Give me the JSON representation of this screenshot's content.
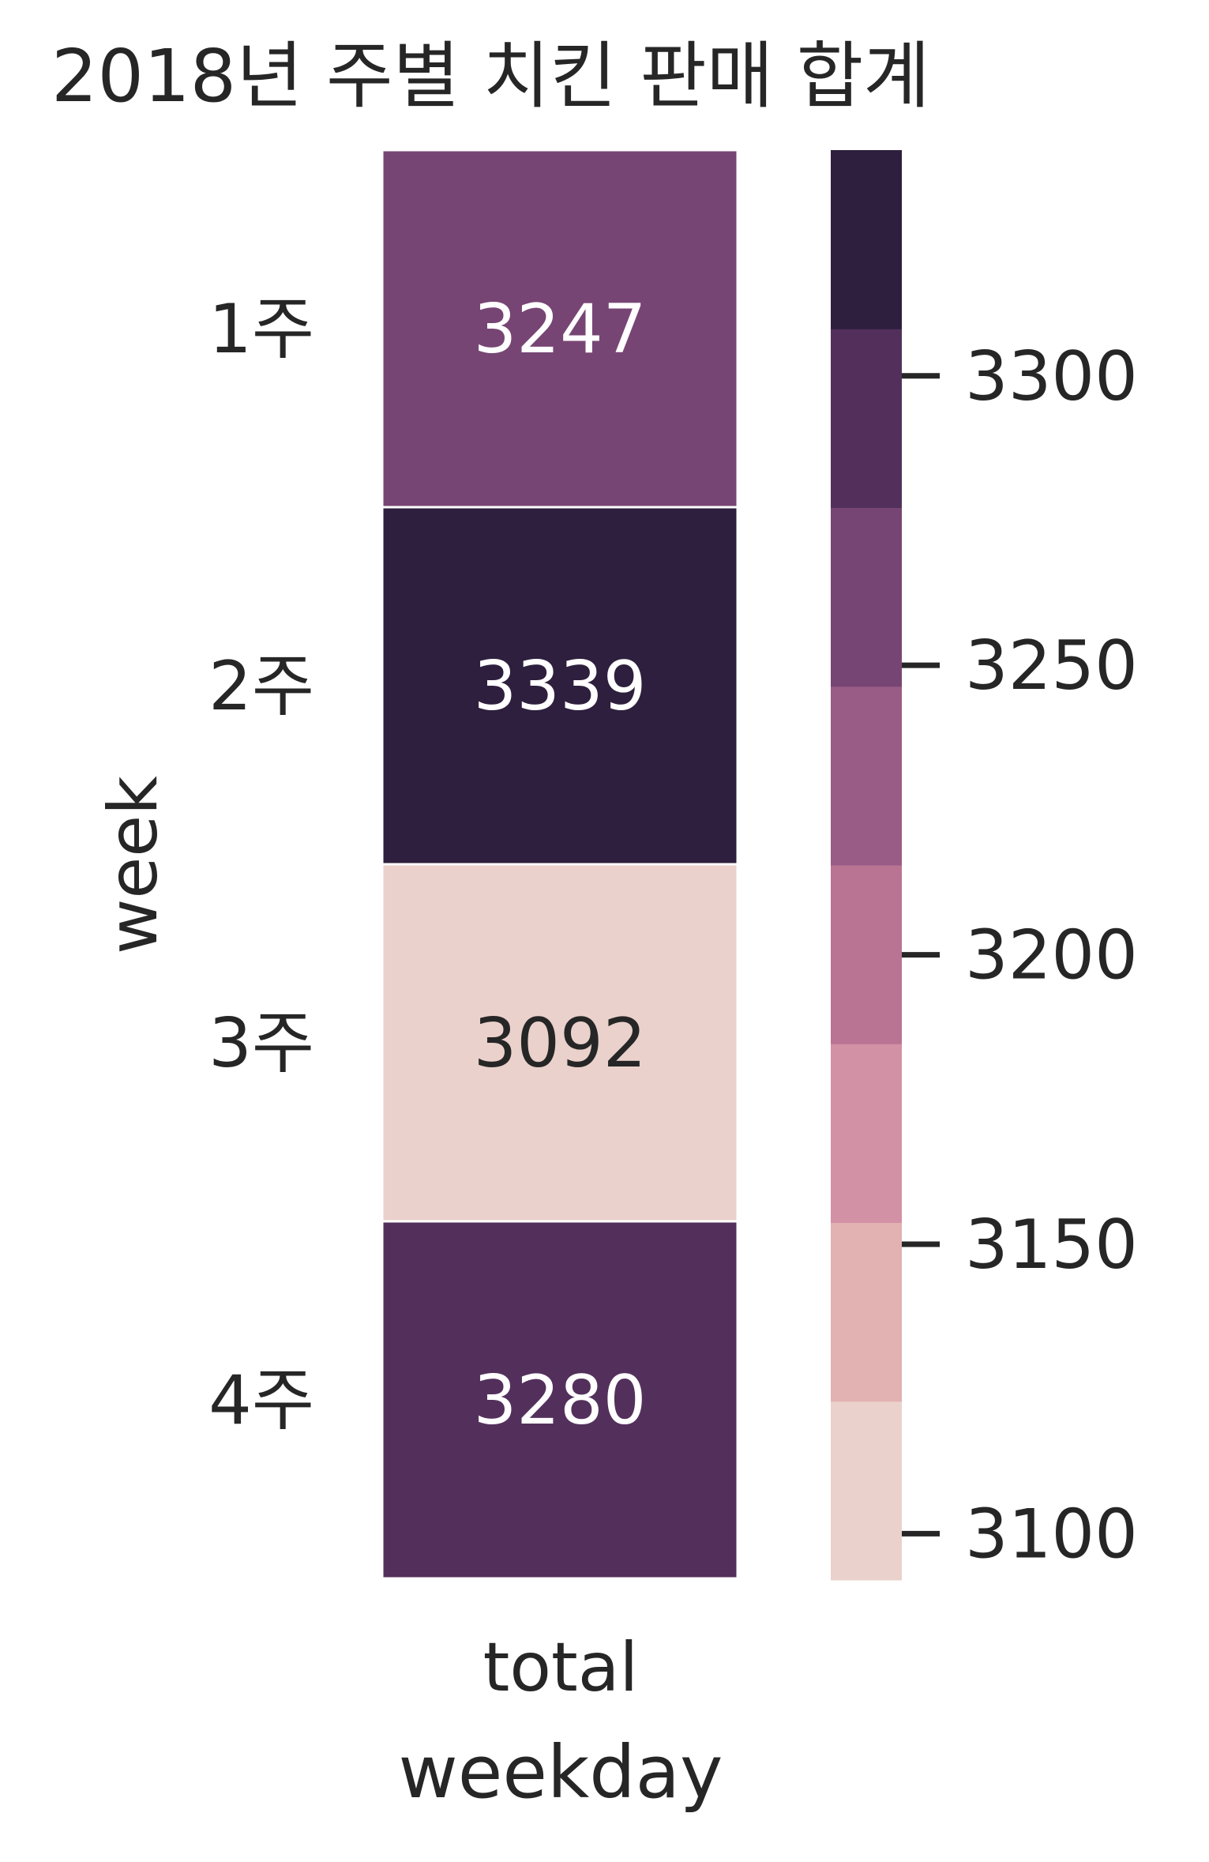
{
  "chart_data": {
    "type": "heatmap",
    "title": "2018년 주별 치킨 판매 합계",
    "xlabel": "weekday",
    "ylabel": "week",
    "columns": [
      "total"
    ],
    "rows": [
      "1주",
      "2주",
      "3주",
      "4주"
    ],
    "values": [
      [
        3247
      ],
      [
        3339
      ],
      [
        3092
      ],
      [
        3280
      ]
    ],
    "colorbar": {
      "range": [
        3092,
        3339
      ],
      "ticks": [
        3100,
        3150,
        3200,
        3250,
        3300
      ],
      "tick_labels": [
        "3100",
        "3150",
        "3200",
        "3250",
        "3300"
      ],
      "palette": [
        "#ead1cb",
        "#e2b1b2",
        "#d291a4",
        "#b97393",
        "#995c86",
        "#774574",
        "#53305c",
        "#2e1f3e"
      ]
    },
    "annotation_colors": {
      "light": "#ffffff",
      "dark": "#262626"
    },
    "grid": false,
    "legend": "right"
  }
}
